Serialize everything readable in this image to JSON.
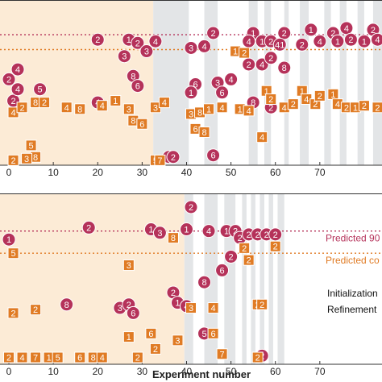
{
  "chart_data": [
    {
      "type": "scatter",
      "xlim": [
        -2,
        84
      ],
      "ylim": [
        0,
        1
      ],
      "xticks": [
        0,
        10,
        20,
        30,
        40,
        50,
        60,
        70
      ],
      "xtick_labels": [
        "0",
        "10",
        "20",
        "30",
        "40",
        "50",
        "60",
        "70"
      ],
      "initialization_end": 32.5,
      "refinement_bands": [
        [
          32.5,
          40.5
        ],
        [
          44,
          47
        ],
        [
          54,
          56
        ],
        [
          57.5,
          59
        ],
        [
          62,
          63
        ],
        [
          65.5,
          67.5
        ],
        [
          71,
          72.5
        ],
        [
          74.5,
          76
        ],
        [
          78.5,
          80
        ],
        [
          82,
          84
        ]
      ],
      "reference_lines": [
        {
          "name": "",
          "value": 0.79,
          "color": "#b5325a"
        },
        {
          "name": "",
          "value": 0.7,
          "color": "#e07b24"
        }
      ],
      "series": [
        {
          "name": "",
          "marker": "circle",
          "color": "#b5325a",
          "points": [
            {
              "x": 20,
              "y": 0.76,
              "label": "2"
            },
            {
              "x": 27,
              "y": 0.76,
              "label": "1"
            },
            {
              "x": 29,
              "y": 0.74,
              "label": "2"
            },
            {
              "x": 33,
              "y": 0.75,
              "label": "4"
            },
            {
              "x": 26,
              "y": 0.66,
              "label": "3"
            },
            {
              "x": 31,
              "y": 0.69,
              "label": "3"
            },
            {
              "x": 41,
              "y": 0.71,
              "label": "3"
            },
            {
              "x": 44,
              "y": 0.72,
              "label": "4"
            },
            {
              "x": 46,
              "y": 0.8,
              "label": "2"
            },
            {
              "x": 55,
              "y": 0.8,
              "label": "1"
            },
            {
              "x": 54,
              "y": 0.75,
              "label": "4"
            },
            {
              "x": 57,
              "y": 0.75,
              "label": "1"
            },
            {
              "x": 59,
              "y": 0.75,
              "label": "2"
            },
            {
              "x": 62,
              "y": 0.8,
              "label": "2"
            },
            {
              "x": 61,
              "y": 0.73,
              "label": "41"
            },
            {
              "x": 66,
              "y": 0.73,
              "label": "2"
            },
            {
              "x": 68,
              "y": 0.82,
              "label": "1"
            },
            {
              "x": 70,
              "y": 0.75,
              "label": "4"
            },
            {
              "x": 73,
              "y": 0.8,
              "label": "2"
            },
            {
              "x": 74,
              "y": 0.75,
              "label": "1"
            },
            {
              "x": 76,
              "y": 0.83,
              "label": "4"
            },
            {
              "x": 77,
              "y": 0.76,
              "label": "2"
            },
            {
              "x": 80,
              "y": 0.75,
              "label": "1"
            },
            {
              "x": 82,
              "y": 0.82,
              "label": "2"
            },
            {
              "x": 83,
              "y": 0.76,
              "label": "4"
            },
            {
              "x": 2,
              "y": 0.58,
              "label": "4"
            },
            {
              "x": 0,
              "y": 0.52,
              "label": "2"
            },
            {
              "x": 1,
              "y": 0.39,
              "label": "2"
            },
            {
              "x": 2,
              "y": 0.46,
              "label": "4"
            },
            {
              "x": 7,
              "y": 0.46,
              "label": "5"
            },
            {
              "x": 28,
              "y": 0.54,
              "label": "8"
            },
            {
              "x": 29,
              "y": 0.48,
              "label": "6"
            },
            {
              "x": 20,
              "y": 0.38,
              "label": "4"
            },
            {
              "x": 42,
              "y": 0.49,
              "label": "6"
            },
            {
              "x": 41,
              "y": 0.44,
              "label": "1"
            },
            {
              "x": 47,
              "y": 0.5,
              "label": "3"
            },
            {
              "x": 50,
              "y": 0.52,
              "label": "4"
            },
            {
              "x": 54,
              "y": 0.61,
              "label": "2"
            },
            {
              "x": 57,
              "y": 0.61,
              "label": "4"
            },
            {
              "x": 59,
              "y": 0.65,
              "label": "2"
            },
            {
              "x": 62,
              "y": 0.59,
              "label": "8"
            },
            {
              "x": 48,
              "y": 0.44,
              "label": "6"
            },
            {
              "x": 55,
              "y": 0.38,
              "label": "8"
            },
            {
              "x": 59,
              "y": 0.35,
              "label": "2"
            },
            {
              "x": 36,
              "y": 0.05,
              "label": "1"
            },
            {
              "x": 37,
              "y": 0.05,
              "label": "2"
            },
            {
              "x": 46,
              "y": 0.06,
              "label": "6"
            }
          ]
        },
        {
          "name": "",
          "marker": "square",
          "color": "#e07b24",
          "points": [
            {
              "x": 1,
              "y": 0.32,
              "label": "4"
            },
            {
              "x": 3,
              "y": 0.35,
              "label": "2"
            },
            {
              "x": 6,
              "y": 0.38,
              "label": "8"
            },
            {
              "x": 8,
              "y": 0.38,
              "label": "2"
            },
            {
              "x": 13,
              "y": 0.35,
              "label": "4"
            },
            {
              "x": 16,
              "y": 0.34,
              "label": "8"
            },
            {
              "x": 21,
              "y": 0.36,
              "label": "4"
            },
            {
              "x": 24,
              "y": 0.39,
              "label": "1"
            },
            {
              "x": 27,
              "y": 0.34,
              "label": "3"
            },
            {
              "x": 28,
              "y": 0.27,
              "label": "8"
            },
            {
              "x": 30,
              "y": 0.25,
              "label": "6"
            },
            {
              "x": 33,
              "y": 0.35,
              "label": "3"
            },
            {
              "x": 35,
              "y": 0.38,
              "label": "4"
            },
            {
              "x": 41,
              "y": 0.31,
              "label": "3"
            },
            {
              "x": 43,
              "y": 0.32,
              "label": "8"
            },
            {
              "x": 45,
              "y": 0.34,
              "label": "1"
            },
            {
              "x": 48,
              "y": 0.35,
              "label": "4"
            },
            {
              "x": 42,
              "y": 0.22,
              "label": "6"
            },
            {
              "x": 44,
              "y": 0.2,
              "label": "8"
            },
            {
              "x": 51,
              "y": 0.69,
              "label": "1"
            },
            {
              "x": 53,
              "y": 0.68,
              "label": "2"
            },
            {
              "x": 52,
              "y": 0.34,
              "label": "1"
            },
            {
              "x": 54,
              "y": 0.33,
              "label": "4"
            },
            {
              "x": 58,
              "y": 0.45,
              "label": "1"
            },
            {
              "x": 59,
              "y": 0.4,
              "label": "2"
            },
            {
              "x": 62,
              "y": 0.35,
              "label": "4"
            },
            {
              "x": 64,
              "y": 0.37,
              "label": "2"
            },
            {
              "x": 66,
              "y": 0.45,
              "label": "1"
            },
            {
              "x": 67,
              "y": 0.4,
              "label": "4"
            },
            {
              "x": 69,
              "y": 0.37,
              "label": "2"
            },
            {
              "x": 70,
              "y": 0.42,
              "label": "2"
            },
            {
              "x": 73,
              "y": 0.43,
              "label": "1"
            },
            {
              "x": 74,
              "y": 0.37,
              "label": "4"
            },
            {
              "x": 76,
              "y": 0.35,
              "label": "2"
            },
            {
              "x": 78,
              "y": 0.35,
              "label": "1"
            },
            {
              "x": 80,
              "y": 0.36,
              "label": "2"
            },
            {
              "x": 83,
              "y": 0.35,
              "label": "2"
            },
            {
              "x": 5,
              "y": 0.12,
              "label": "5"
            },
            {
              "x": 6,
              "y": 0.05,
              "label": "8"
            },
            {
              "x": 4,
              "y": 0.04,
              "label": "3"
            },
            {
              "x": 1,
              "y": 0.03,
              "label": "2"
            },
            {
              "x": 33,
              "y": 0.03,
              "label": "5"
            },
            {
              "x": 34,
              "y": 0.03,
              "label": "7"
            },
            {
              "x": 57,
              "y": 0.17,
              "label": "4"
            }
          ]
        }
      ]
    },
    {
      "type": "scatter",
      "xlabel": "Experiment number",
      "xlim": [
        -2,
        84
      ],
      "ylim": [
        0,
        1
      ],
      "xticks": [
        0,
        10,
        20,
        30,
        40,
        50,
        60,
        70
      ],
      "xtick_labels": [
        "0",
        "10",
        "20",
        "30",
        "40",
        "50",
        "60",
        "70"
      ],
      "initialization_end": 39.5,
      "refinement_bands": [
        [
          39.5,
          41.5
        ],
        [
          44,
          47
        ],
        [
          48.5,
          51
        ],
        [
          52.5,
          53.5
        ],
        [
          54.5,
          55.5
        ],
        [
          56.5,
          57.5
        ],
        [
          58.5,
          59.5
        ],
        [
          60.5,
          62
        ]
      ],
      "reference_lines": [
        {
          "name": "Predicted 90",
          "value": 0.78,
          "color": "#b5325a"
        },
        {
          "name": "Predicted co",
          "value": 0.65,
          "color": "#e07b24"
        }
      ],
      "legend": {
        "position": "right",
        "entries": [
          "Initialization",
          "Refinement"
        ]
      },
      "series": [
        {
          "name": "",
          "marker": "circle",
          "color": "#b5325a",
          "points": [
            {
              "x": 18,
              "y": 0.8,
              "label": "2"
            },
            {
              "x": 0,
              "y": 0.73,
              "label": "1"
            },
            {
              "x": 32,
              "y": 0.79,
              "label": "1"
            },
            {
              "x": 34,
              "y": 0.77,
              "label": "3"
            },
            {
              "x": 40,
              "y": 0.79,
              "label": "1"
            },
            {
              "x": 45,
              "y": 0.78,
              "label": "4"
            },
            {
              "x": 41,
              "y": 0.92,
              "label": "2"
            },
            {
              "x": 49,
              "y": 0.78,
              "label": "1"
            },
            {
              "x": 51,
              "y": 0.78,
              "label": "2"
            },
            {
              "x": 52,
              "y": 0.74,
              "label": "2"
            },
            {
              "x": 54,
              "y": 0.76,
              "label": "2"
            },
            {
              "x": 56,
              "y": 0.76,
              "label": "2"
            },
            {
              "x": 58,
              "y": 0.76,
              "label": "2"
            },
            {
              "x": 60,
              "y": 0.76,
              "label": "2"
            },
            {
              "x": 48,
              "y": 0.55,
              "label": "6"
            },
            {
              "x": 50,
              "y": 0.63,
              "label": "2"
            },
            {
              "x": 44,
              "y": 0.48,
              "label": "8"
            },
            {
              "x": 37,
              "y": 0.42,
              "label": "2"
            },
            {
              "x": 38,
              "y": 0.36,
              "label": "1"
            },
            {
              "x": 40,
              "y": 0.34,
              "label": "4"
            },
            {
              "x": 13,
              "y": 0.35,
              "label": "8"
            },
            {
              "x": 25,
              "y": 0.33,
              "label": "3"
            },
            {
              "x": 27,
              "y": 0.35,
              "label": "2"
            },
            {
              "x": 28,
              "y": 0.3,
              "label": "6"
            },
            {
              "x": 44,
              "y": 0.18,
              "label": "5"
            },
            {
              "x": 57,
              "y": 0.05,
              "label": "2"
            }
          ]
        },
        {
          "name": "",
          "marker": "square",
          "color": "#e07b24",
          "points": [
            {
              "x": 1,
              "y": 0.65,
              "label": "5"
            },
            {
              "x": 27,
              "y": 0.58,
              "label": "3"
            },
            {
              "x": 37,
              "y": 0.74,
              "label": "8"
            },
            {
              "x": 53,
              "y": 0.68,
              "label": "2"
            },
            {
              "x": 60,
              "y": 0.69,
              "label": "2"
            },
            {
              "x": 54,
              "y": 0.61,
              "label": "2"
            },
            {
              "x": 56,
              "y": 0.35,
              "label": "2"
            },
            {
              "x": 57,
              "y": 0.35,
              "label": "2"
            },
            {
              "x": 1,
              "y": 0.3,
              "label": "2"
            },
            {
              "x": 6,
              "y": 0.32,
              "label": "2"
            },
            {
              "x": 41,
              "y": 0.33,
              "label": "3"
            },
            {
              "x": 46,
              "y": 0.33,
              "label": "4"
            },
            {
              "x": 32,
              "y": 0.18,
              "label": "6"
            },
            {
              "x": 38,
              "y": 0.14,
              "label": "3"
            },
            {
              "x": 46,
              "y": 0.18,
              "label": "6"
            },
            {
              "x": 48,
              "y": 0.06,
              "label": "7"
            },
            {
              "x": 0,
              "y": 0.04,
              "label": "2"
            },
            {
              "x": 3,
              "y": 0.04,
              "label": "4"
            },
            {
              "x": 6,
              "y": 0.04,
              "label": "7"
            },
            {
              "x": 9,
              "y": 0.04,
              "label": "1"
            },
            {
              "x": 11,
              "y": 0.04,
              "label": "5"
            },
            {
              "x": 16,
              "y": 0.04,
              "label": "6"
            },
            {
              "x": 19,
              "y": 0.04,
              "label": "8"
            },
            {
              "x": 21,
              "y": 0.04,
              "label": "4"
            },
            {
              "x": 29,
              "y": 0.04,
              "label": "2"
            },
            {
              "x": 56,
              "y": 0.04,
              "label": "2"
            },
            {
              "x": 33,
              "y": 0.09,
              "label": "2"
            },
            {
              "x": 27,
              "y": 0.16,
              "label": "1"
            }
          ]
        }
      ]
    }
  ]
}
